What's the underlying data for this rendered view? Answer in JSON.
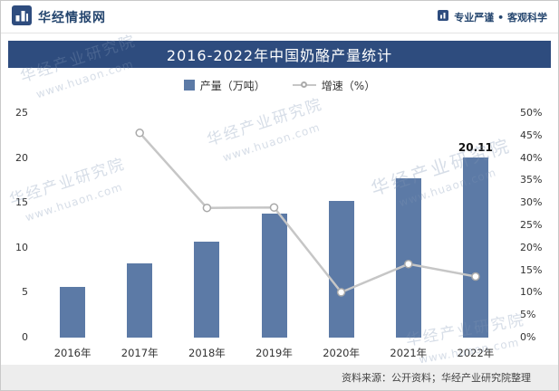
{
  "header": {
    "brand": "华经情报网",
    "slogan": "专业严谨 • 客观科学"
  },
  "title": "2016-2022年中国奶酪产量统计",
  "legend": {
    "bars": "产量（万吨）",
    "line": "增速（%）"
  },
  "footer": {
    "source": "资料来源：公开资料；华经产业研究院整理"
  },
  "watermark": {
    "name": "华经产业研究院",
    "url": "www.huaon.com"
  },
  "colors": {
    "bar": "#5C7AA6",
    "line": "#C6C6C6",
    "marker_stroke": "#A9A9A9",
    "title_bg": "#2E4C7E",
    "accent": "#24456E",
    "footer_bg": "#EDEDED"
  },
  "chart_data": {
    "type": "bar",
    "title": "2016-2022年中国奶酪产量统计",
    "categories": [
      "2016年",
      "2017年",
      "2018年",
      "2019年",
      "2020年",
      "2021年",
      "2022年"
    ],
    "series": [
      {
        "name": "产量（万吨）",
        "type": "bar",
        "axis": "left",
        "values": [
          5.7,
          8.3,
          10.7,
          13.8,
          15.2,
          17.7,
          20.11
        ]
      },
      {
        "name": "增速（%）",
        "type": "line",
        "axis": "right",
        "values": [
          null,
          45.6,
          28.9,
          29.0,
          10.1,
          16.4,
          13.6
        ]
      }
    ],
    "left_axis": {
      "min": 0,
      "max": 25,
      "step": 5
    },
    "right_axis": {
      "min": 0,
      "max": 50,
      "step": 5,
      "suffix": "%"
    },
    "data_label": {
      "category": "2022年",
      "text": "20.11"
    },
    "grid": false,
    "legend_position": "top"
  }
}
